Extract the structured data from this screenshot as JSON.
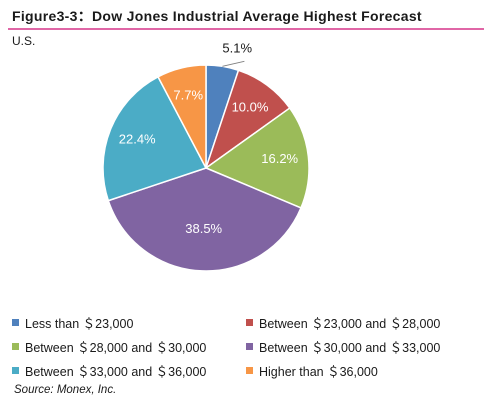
{
  "header": {
    "title": "Figure3-3：Dow Jones Industrial Average Highest Forecast",
    "subtitle": "U.S."
  },
  "footer": {
    "source": "Source: Monex, Inc."
  },
  "chart_data": {
    "type": "pie",
    "title": "Figure3-3：Dow Jones Industrial Average Highest Forecast",
    "subtitle": "U.S.",
    "slices": [
      {
        "label": "Less than ＄23,000",
        "value": 5.1,
        "display": "5.1%",
        "color": "#4f81bd"
      },
      {
        "label": "Between ＄23,000 and ＄28,000",
        "value": 10.0,
        "display": "10.0%",
        "color": "#c0504d"
      },
      {
        "label": "Between ＄28,000 and ＄30,000",
        "value": 16.2,
        "display": "16.2%",
        "color": "#9bbb59"
      },
      {
        "label": "Between ＄30,000 and ＄33,000",
        "value": 38.5,
        "display": "38.5%",
        "color": "#8064a2"
      },
      {
        "label": "Between ＄33,000 and ＄36,000",
        "value": 22.4,
        "display": "22.4%",
        "color": "#4bacc6"
      },
      {
        "label": "Higher than ＄36,000",
        "value": 7.7,
        "display": "7.7%",
        "color": "#f79646"
      }
    ],
    "legend_order": [
      0,
      1,
      2,
      3,
      4,
      5
    ],
    "legend_placement": "bottom"
  }
}
